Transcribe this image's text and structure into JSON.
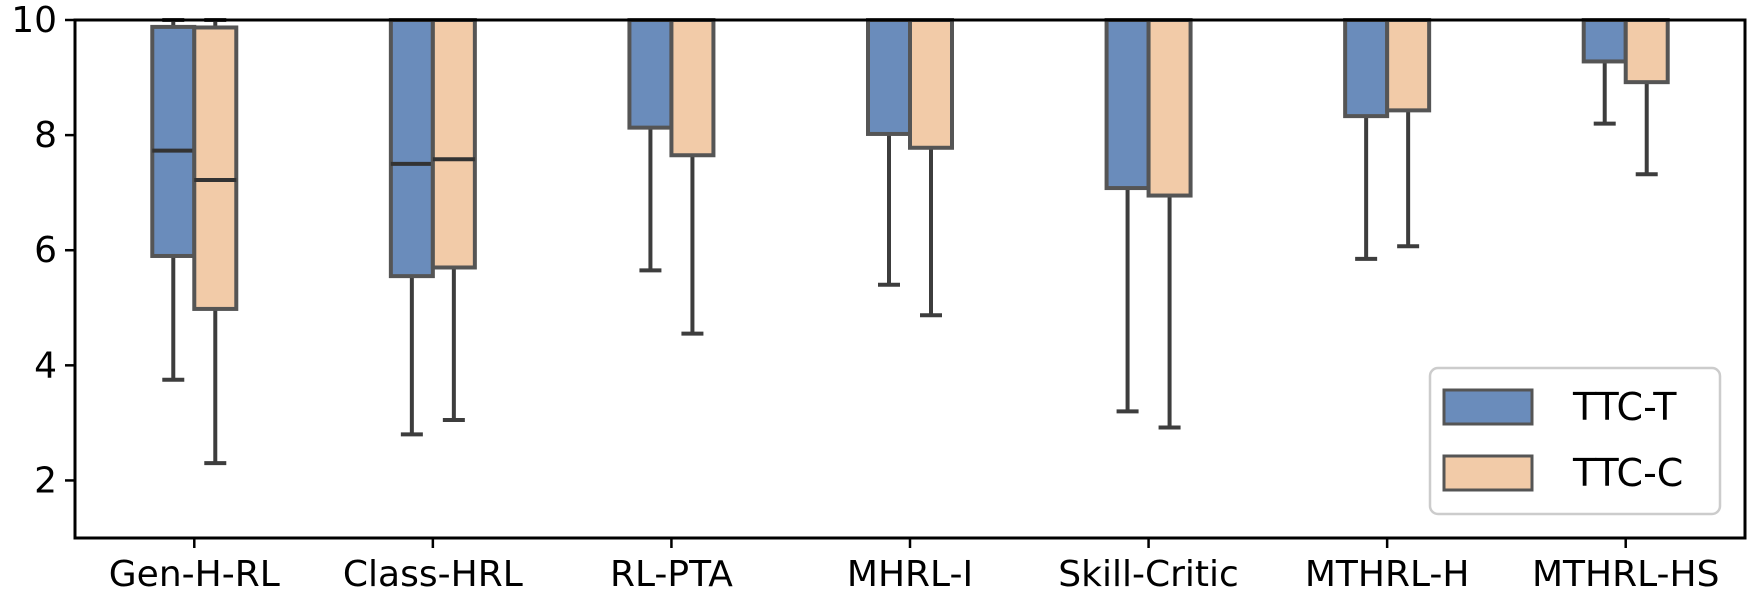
{
  "chart_data": {
    "type": "boxplot",
    "title": "",
    "xlabel": "",
    "ylabel": "",
    "ylim": [
      1,
      10
    ],
    "yticks": [
      2,
      4,
      6,
      8,
      10
    ],
    "categories": [
      "Gen-H-RL",
      "Class-HRL",
      "RL-PTA",
      "MHRL-I",
      "Skill-Critic",
      "MTHRL-H",
      "MTHRL-HS"
    ],
    "legend_position": "lower-right",
    "series": [
      {
        "name": "TTC-T",
        "color": "#6a8cbb",
        "boxes": [
          {
            "whislo": 3.75,
            "q1": 5.9,
            "med": 7.73,
            "q3": 9.88,
            "whishi": 10.0
          },
          {
            "whislo": 2.8,
            "q1": 5.55,
            "med": 7.5,
            "q3": 10.0,
            "whishi": 10.0
          },
          {
            "whislo": 5.65,
            "q1": 8.13,
            "med": 10.0,
            "q3": 10.0,
            "whishi": 10.0
          },
          {
            "whislo": 5.4,
            "q1": 8.02,
            "med": 10.0,
            "q3": 10.0,
            "whishi": 10.0
          },
          {
            "whislo": 3.2,
            "q1": 7.08,
            "med": 10.0,
            "q3": 10.0,
            "whishi": 10.0
          },
          {
            "whislo": 5.85,
            "q1": 8.33,
            "med": 10.0,
            "q3": 10.0,
            "whishi": 10.0
          },
          {
            "whislo": 8.2,
            "q1": 9.28,
            "med": 10.0,
            "q3": 10.0,
            "whishi": 10.0
          }
        ]
      },
      {
        "name": "TTC-C",
        "color": "#f2cba8",
        "boxes": [
          {
            "whislo": 2.3,
            "q1": 4.98,
            "med": 7.22,
            "q3": 9.87,
            "whishi": 10.0
          },
          {
            "whislo": 3.05,
            "q1": 5.7,
            "med": 7.58,
            "q3": 10.0,
            "whishi": 10.0
          },
          {
            "whislo": 4.55,
            "q1": 7.65,
            "med": 10.0,
            "q3": 10.0,
            "whishi": 10.0
          },
          {
            "whislo": 4.87,
            "q1": 7.78,
            "med": 10.0,
            "q3": 10.0,
            "whishi": 10.0
          },
          {
            "whislo": 2.92,
            "q1": 6.95,
            "med": 10.0,
            "q3": 10.0,
            "whishi": 10.0
          },
          {
            "whislo": 6.07,
            "q1": 8.43,
            "med": 10.0,
            "q3": 10.0,
            "whishi": 10.0
          },
          {
            "whislo": 7.32,
            "q1": 8.92,
            "med": 10.0,
            "q3": 10.0,
            "whishi": 10.0
          }
        ]
      }
    ]
  }
}
